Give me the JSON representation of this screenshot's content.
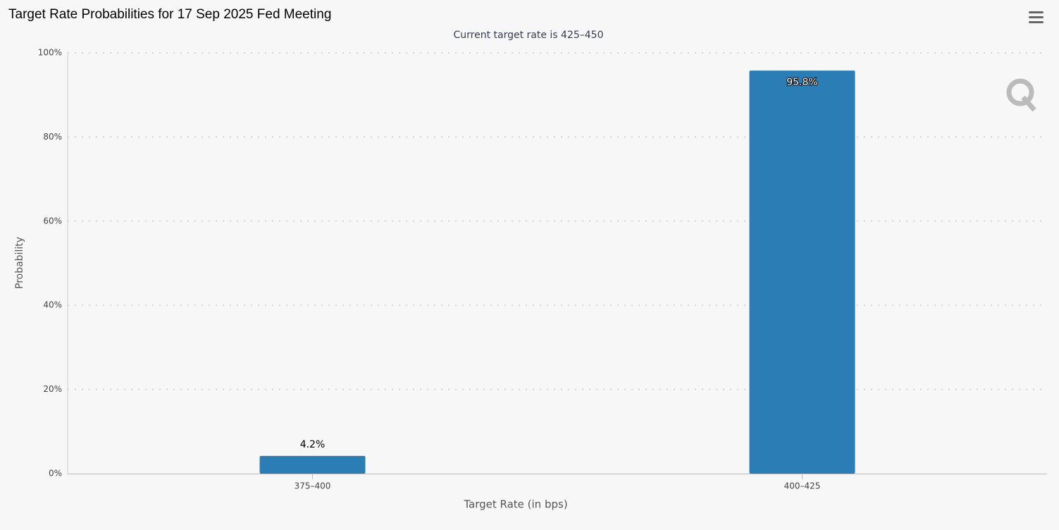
{
  "chart_data": {
    "type": "bar",
    "title": "Target Rate Probabilities for 17 Sep 2025 Fed Meeting",
    "subtitle": "Current target rate is 425–450",
    "x_label": "Target Rate (in bps)",
    "y_label": "Probability",
    "categories": [
      "375–400",
      "400–425"
    ],
    "values": [
      4.2,
      95.8
    ],
    "value_labels": [
      "4.2%",
      "95.8%"
    ],
    "color": "#2a7db5",
    "ylim": [
      0,
      100
    ],
    "yticks": [
      {
        "value": 0,
        "label": "0%"
      },
      {
        "value": 20,
        "label": "20%"
      },
      {
        "value": 40,
        "label": "40%"
      },
      {
        "value": 60,
        "label": "60%"
      },
      {
        "value": 80,
        "label": "80%"
      },
      {
        "value": 100,
        "label": "100%"
      }
    ],
    "grid": true
  }
}
